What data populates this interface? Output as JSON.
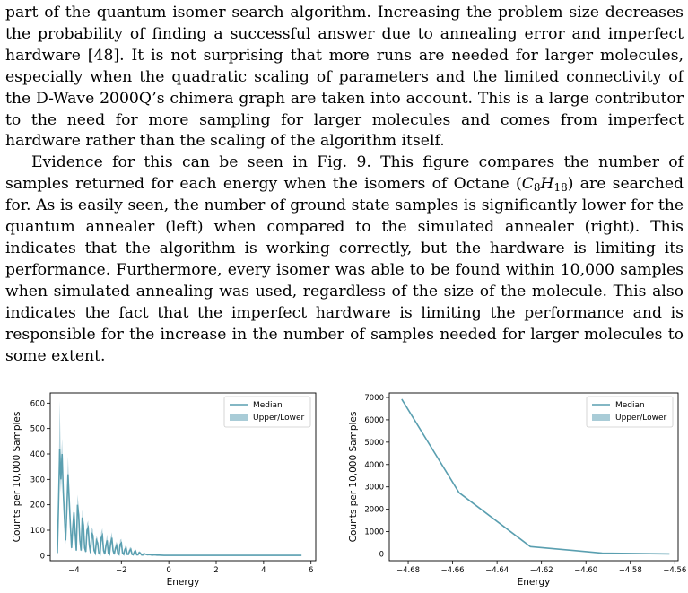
{
  "paper": {
    "para1": "part of the quantum isomer search algorithm. Increasing the problem size decreases the probability of finding a successful answer due to annealing error and imperfect hardware [48]. It is not surprising that more runs are needed for larger molecules, especially when the quadratic scaling of parameters and the limited connectivity of the D-Wave 2000Q’s chimera graph are taken into account. This is a large contributor to the need for more sampling for larger molecules and comes from imperfect hardware rather than the scaling of the algorithm itself.",
    "para2_before": "Evidence for this can be seen in Fig. 9. This figure compares the number of samples returned for each energy when the isomers of Octane (",
    "para2_chem": {
      "C": "C",
      "c_sub": "8",
      "H": "H",
      "h_sub": "18"
    },
    "para2_after": ") are searched for. As is easily seen, the number of ground state samples is significantly lower for the quantum annealer (left) when compared to the simulated annealer (right). This indicates that the algorithm is working correctly, but the hardware is limiting its performance. Furthermore, every isomer was able to be found within 10,000 samples when simulated annealing was used, regardless of the size of the molecule. This also indicates the fact that the imperfect hardware is limiting the performance and is responsible for the increase in the number of samples needed for larger molecules to some extent."
  },
  "colors": {
    "line": "#5a9fb0",
    "band": "#a9ccd7",
    "text": "#000000",
    "legend_border": "#cccccc"
  },
  "chart_data": [
    {
      "type": "line",
      "xlabel": "Energy",
      "ylabel": "Counts per 10,000 Samples",
      "xlim": [
        -5.0,
        6.2
      ],
      "ylim": [
        -20,
        640
      ],
      "xticks": [
        -4,
        -2,
        0,
        2,
        4,
        6
      ],
      "xtick_labels": [
        "−4",
        "−2",
        "0",
        "2",
        "4",
        "6"
      ],
      "yticks": [
        0,
        100,
        200,
        300,
        400,
        500,
        600
      ],
      "ytick_labels": [
        "0",
        "100",
        "200",
        "300",
        "400",
        "500",
        "600"
      ],
      "legend": {
        "position": "top-right",
        "entries": [
          "Median",
          "Upper/Lower"
        ]
      },
      "series": [
        {
          "name": "Median",
          "x": [
            -4.7,
            -4.65,
            -4.6,
            -4.55,
            -4.5,
            -4.45,
            -4.4,
            -4.35,
            -4.3,
            -4.25,
            -4.2,
            -4.15,
            -4.1,
            -4.05,
            -4.0,
            -3.95,
            -3.9,
            -3.85,
            -3.8,
            -3.75,
            -3.7,
            -3.65,
            -3.6,
            -3.55,
            -3.5,
            -3.45,
            -3.4,
            -3.35,
            -3.3,
            -3.25,
            -3.2,
            -3.15,
            -3.1,
            -3.05,
            -3.0,
            -2.95,
            -2.9,
            -2.85,
            -2.8,
            -2.75,
            -2.7,
            -2.65,
            -2.6,
            -2.55,
            -2.5,
            -2.45,
            -2.4,
            -2.35,
            -2.3,
            -2.25,
            -2.2,
            -2.15,
            -2.1,
            -2.05,
            -2.0,
            -1.95,
            -1.9,
            -1.85,
            -1.8,
            -1.75,
            -1.7,
            -1.65,
            -1.6,
            -1.55,
            -1.5,
            -1.45,
            -1.4,
            -1.35,
            -1.3,
            -1.25,
            -1.2,
            -1.15,
            -1.1,
            -1.05,
            -1.0,
            -0.9,
            -0.8,
            -0.7,
            -0.6,
            -0.5,
            -0.4,
            -0.2,
            0.0,
            0.5,
            1.0,
            2.0,
            3.0,
            4.0,
            5.0,
            5.6
          ],
          "y": [
            10,
            200,
            420,
            300,
            400,
            250,
            150,
            60,
            180,
            320,
            220,
            120,
            30,
            110,
            170,
            90,
            20,
            200,
            160,
            60,
            20,
            150,
            120,
            30,
            15,
            100,
            110,
            40,
            10,
            90,
            80,
            20,
            10,
            60,
            50,
            10,
            5,
            70,
            80,
            20,
            5,
            40,
            60,
            10,
            5,
            50,
            70,
            20,
            5,
            30,
            40,
            10,
            5,
            45,
            50,
            10,
            5,
            25,
            30,
            5,
            5,
            20,
            25,
            5,
            3,
            15,
            18,
            3,
            3,
            12,
            10,
            3,
            2,
            8,
            6,
            3,
            4,
            2,
            3,
            2,
            2,
            1,
            1,
            1,
            1,
            1,
            1,
            1,
            1,
            1
          ],
          "lower": [
            8,
            150,
            330,
            250,
            330,
            200,
            120,
            45,
            150,
            270,
            180,
            95,
            20,
            90,
            140,
            70,
            15,
            165,
            130,
            45,
            15,
            120,
            95,
            22,
            10,
            80,
            88,
            30,
            7,
            70,
            62,
            14,
            7,
            45,
            38,
            7,
            3,
            52,
            60,
            14,
            3,
            28,
            44,
            6,
            3,
            36,
            50,
            13,
            3,
            20,
            28,
            6,
            3,
            32,
            36,
            6,
            3,
            16,
            20,
            3,
            3,
            12,
            16,
            3,
            2,
            9,
            11,
            2,
            2,
            7,
            6,
            2,
            1,
            4,
            3,
            2,
            2,
            1,
            2,
            1,
            1,
            0,
            0,
            0,
            0,
            0,
            0,
            0,
            0,
            0
          ],
          "upper": [
            12,
            260,
            610,
            360,
            460,
            300,
            185,
            80,
            215,
            390,
            260,
            150,
            40,
            135,
            205,
            112,
            28,
            240,
            195,
            78,
            28,
            180,
            148,
            40,
            22,
            125,
            138,
            54,
            15,
            112,
            102,
            30,
            15,
            78,
            66,
            15,
            8,
            92,
            108,
            30,
            8,
            56,
            84,
            16,
            8,
            70,
            92,
            30,
            8,
            44,
            56,
            15,
            8,
            62,
            66,
            15,
            8,
            36,
            42,
            9,
            8,
            30,
            34,
            8,
            5,
            22,
            26,
            5,
            5,
            18,
            15,
            5,
            4,
            12,
            10,
            5,
            7,
            4,
            5,
            4,
            4,
            3,
            2,
            2,
            2,
            2,
            2,
            2,
            2,
            2
          ]
        }
      ]
    },
    {
      "type": "line",
      "xlabel": "Energy",
      "ylabel": "Counts per 10,000 Samples",
      "xlim": [
        -4.6885,
        -4.5585
      ],
      "ylim": [
        -300,
        7200
      ],
      "xticks": [
        -4.68,
        -4.66,
        -4.64,
        -4.62,
        -4.6,
        -4.58,
        -4.56
      ],
      "xtick_labels": [
        "−4.68",
        "−4.66",
        "−4.64",
        "−4.62",
        "−4.60",
        "−4.58",
        "−4.56"
      ],
      "yticks": [
        0,
        1000,
        2000,
        3000,
        4000,
        5000,
        6000,
        7000
      ],
      "ytick_labels": [
        "0",
        "1000",
        "2000",
        "3000",
        "4000",
        "5000",
        "6000",
        "7000"
      ],
      "legend": {
        "position": "top-right",
        "entries": [
          "Median",
          "Upper/Lower"
        ]
      },
      "series": [
        {
          "name": "Median",
          "x": [
            -4.6829,
            -4.6571,
            -4.625,
            -4.5927,
            -4.5624
          ],
          "y": [
            6920,
            2740,
            330,
            40,
            5
          ],
          "lower": [
            6880,
            2710,
            310,
            30,
            0
          ],
          "upper": [
            6960,
            2770,
            350,
            50,
            10
          ]
        }
      ]
    }
  ]
}
